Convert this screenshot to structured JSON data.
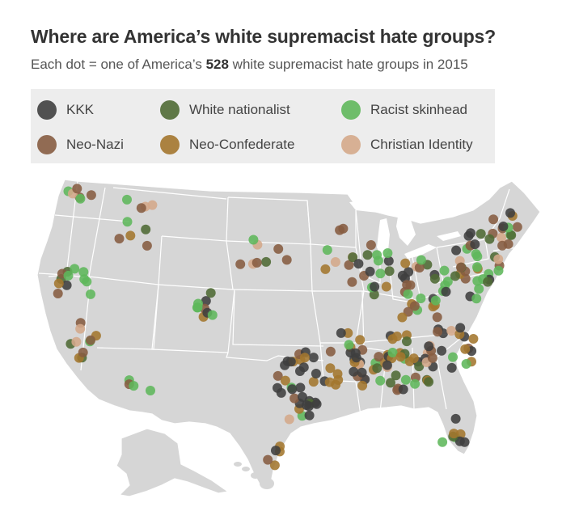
{
  "title": "Where are America’s white supremacist hate groups?",
  "subtitle": {
    "before": "Each dot = one of America’s ",
    "count": "528",
    "after": " white supremacist hate groups in 2015"
  },
  "legend": [
    {
      "label": "KKK",
      "color": "#3f3f3f"
    },
    {
      "label": "White nationalist",
      "color": "#4f6a34"
    },
    {
      "label": "Racist skinhead",
      "color": "#5fb75b"
    },
    {
      "label": "Neo-Nazi",
      "color": "#865c41"
    },
    {
      "label": "Neo-Confederate",
      "color": "#a3762e"
    },
    {
      "label": "Christian Identity",
      "color": "#d4a98a"
    }
  ],
  "colors": {
    "land": "#d6d6d6",
    "border": "#ffffff",
    "background": "#ffffff"
  }
}
